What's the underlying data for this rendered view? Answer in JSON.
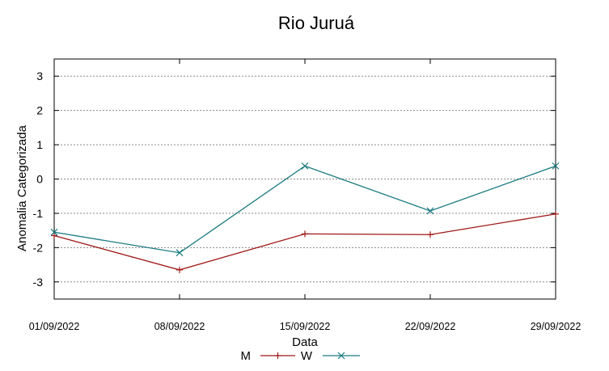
{
  "chart_data": {
    "type": "line",
    "title": "Rio Juruá",
    "xlabel": "Data",
    "ylabel": "Anomalia Categorizada",
    "categories": [
      "01/09/2022",
      "08/09/2022",
      "15/09/2022",
      "22/09/2022",
      "29/09/2022"
    ],
    "ylim": [
      -3.5,
      3.5
    ],
    "yticks": [
      -3,
      -2,
      -1,
      0,
      1,
      2,
      3
    ],
    "grid": true,
    "legend_position": "bottom",
    "series": [
      {
        "name": "M",
        "color": "#a01818",
        "marker": "plus",
        "values": [
          -1.65,
          -2.65,
          -1.6,
          -1.62,
          -1.02
        ]
      },
      {
        "name": "W",
        "color": "#1a7a80",
        "marker": "x",
        "values": [
          -1.55,
          -2.15,
          0.38,
          -0.93,
          0.38
        ]
      }
    ]
  }
}
